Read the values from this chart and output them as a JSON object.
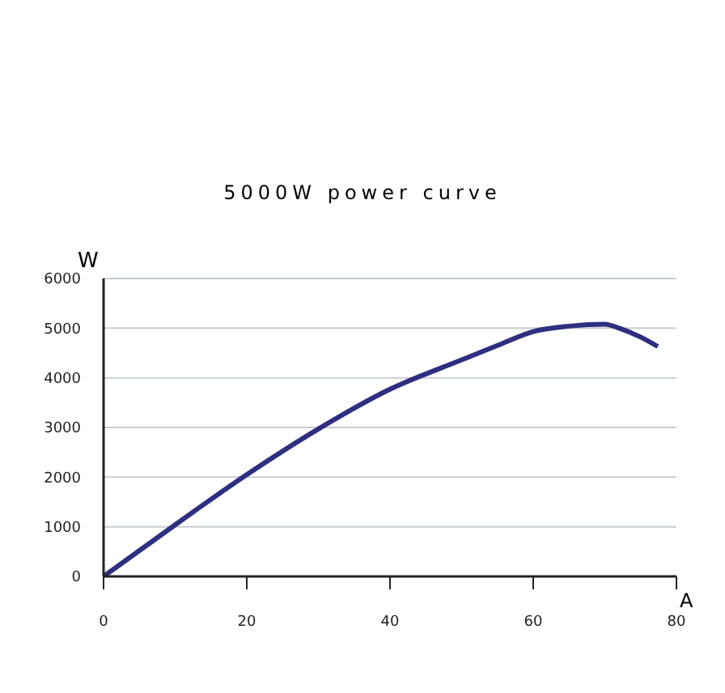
{
  "chart_data": {
    "type": "line",
    "title": "5000W power curve",
    "ylabel": "W",
    "xlabel": "A",
    "x": [
      0,
      10,
      20,
      30,
      40,
      50,
      55,
      60,
      65,
      70,
      72,
      75,
      77.4
    ],
    "series": [
      {
        "color": "#2e2f80",
        "values": [
          0,
          1040,
          2050,
          2970,
          3770,
          4360,
          4650,
          4930,
          5040,
          5080,
          5000,
          4820,
          4630
        ]
      }
    ],
    "xlim": [
      0,
      80
    ],
    "xticks": [
      0,
      20,
      40,
      60,
      80
    ],
    "ylim": [
      0,
      6000
    ],
    "yticks": [
      0,
      1000,
      2000,
      3000,
      4000,
      5000,
      6000
    ],
    "grid": "y",
    "legend": false,
    "marker": "none",
    "line_style": "solid"
  }
}
